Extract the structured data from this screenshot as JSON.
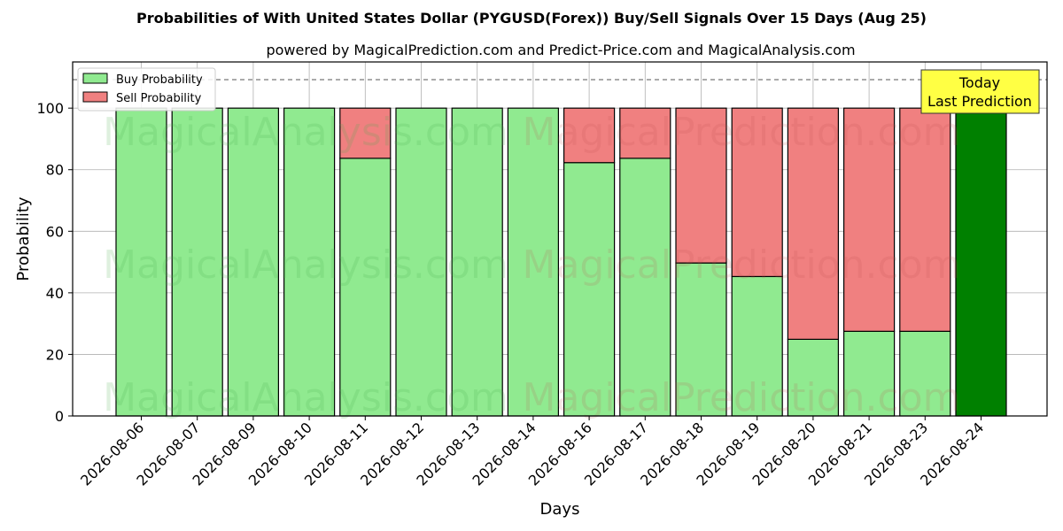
{
  "chart_data": {
    "type": "bar",
    "stacked": true,
    "title": "Probabilities of With United States Dollar (PYGUSD(Forex)) Buy/Sell Signals Over 15 Days (Aug 25)",
    "subtitle": "powered by MagicalPrediction.com and Predict-Price.com and MagicalAnalysis.com",
    "xlabel": "Days",
    "ylabel": "Probability",
    "ylim": [
      0,
      115
    ],
    "yticks": [
      0,
      20,
      40,
      60,
      80,
      100
    ],
    "reference_line": 110,
    "grid": true,
    "legend_position": "top-left",
    "categories": [
      "2026-08-06",
      "2026-08-07",
      "2026-08-09",
      "2026-08-10",
      "2026-08-11",
      "2026-08-12",
      "2026-08-13",
      "2026-08-14",
      "2026-08-16",
      "2026-08-17",
      "2026-08-18",
      "2026-08-19",
      "2026-08-20",
      "2026-08-21",
      "2026-08-23",
      "2026-08-24"
    ],
    "series": [
      {
        "name": "Buy Probability",
        "color": "#90ea90",
        "values": [
          100,
          100,
          100,
          100,
          83.7,
          100,
          100,
          100,
          82.3,
          83.7,
          49.7,
          45.3,
          24.9,
          27.5,
          27.5,
          100
        ]
      },
      {
        "name": "Sell Probability",
        "color": "#f08080",
        "values": [
          0,
          0,
          0,
          0,
          16.3,
          0,
          0,
          0,
          17.7,
          16.3,
          50.3,
          54.7,
          75.1,
          72.5,
          72.5,
          0
        ]
      }
    ],
    "highlight": {
      "index": 15,
      "color": "#008000",
      "label_line1": "Today",
      "label_line2": "Last Prediction",
      "box_color": "#ffff44"
    },
    "watermarks": [
      "MagicalAnalysis.com",
      "MagicalPrediction.com"
    ]
  }
}
